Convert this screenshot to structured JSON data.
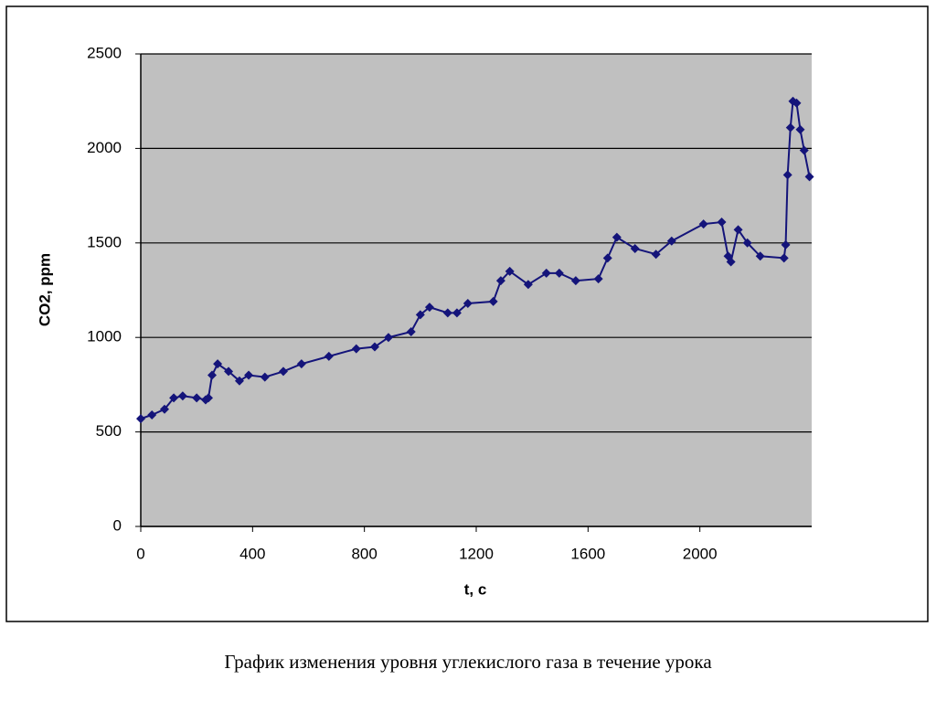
{
  "chart_data": {
    "type": "line",
    "x_label": "t, с",
    "y_label": "CO2, ppm",
    "caption": "График изменения уровня углекислого газа в течение урока",
    "x": [
      0,
      40,
      85,
      118,
      150,
      200,
      232,
      242,
      255,
      275,
      314,
      353,
      386,
      444,
      510,
      575,
      673,
      771,
      837,
      886,
      967,
      1000,
      1033,
      1098,
      1131,
      1170,
      1261,
      1288,
      1320,
      1386,
      1451,
      1497,
      1556,
      1637,
      1670,
      1703,
      1768,
      1843,
      1899,
      2013,
      2078,
      2101,
      2111,
      2137,
      2170,
      2216,
      2301,
      2307,
      2314,
      2324,
      2333,
      2346,
      2359,
      2373,
      2392
    ],
    "values": [
      570,
      590,
      620,
      680,
      690,
      680,
      670,
      680,
      800,
      860,
      820,
      770,
      800,
      790,
      820,
      860,
      900,
      940,
      950,
      1000,
      1030,
      1120,
      1160,
      1130,
      1130,
      1180,
      1190,
      1300,
      1350,
      1280,
      1340,
      1340,
      1300,
      1310,
      1420,
      1530,
      1470,
      1440,
      1510,
      1600,
      1610,
      1430,
      1400,
      1570,
      1500,
      1430,
      1420,
      1490,
      1860,
      2110,
      2250,
      2240,
      2100,
      1990,
      1850
    ],
    "color": "#14147a",
    "xlim": [
      0,
      2400
    ],
    "ylim": [
      0,
      2500
    ],
    "xticks": [
      0,
      400,
      800,
      1200,
      1600,
      2000
    ],
    "yticks": [
      0,
      500,
      1000,
      1500,
      2000,
      2500
    ],
    "grid": true,
    "plot_background": "#c0c0c0"
  }
}
